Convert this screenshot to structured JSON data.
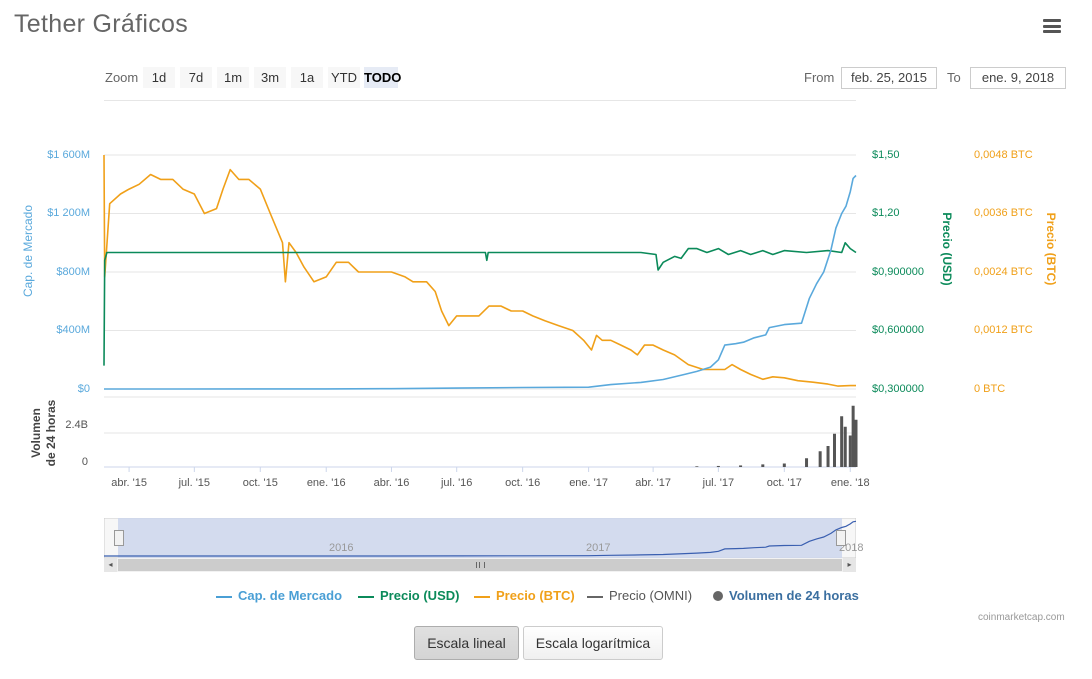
{
  "title": "Tether Gráficos",
  "toolbar": {
    "zoom_label": "Zoom",
    "zoom_buttons": [
      "1d",
      "7d",
      "1m",
      "3m",
      "1a",
      "YTD",
      "TODO"
    ],
    "active_zoom": "TODO",
    "from_label": "From",
    "from_value": "feb. 25, 2015",
    "to_label": "To",
    "to_value": "ene. 9, 2018"
  },
  "axes": {
    "market_cap_label": "Cap. de Mercado",
    "price_usd_label": "Precio (USD)",
    "price_btc_label": "Precio (BTC)",
    "volume_label_line1": "Volumen",
    "volume_label_line2": "de 24 horas"
  },
  "colors": {
    "market_cap": "#5aa9dc",
    "price_usd": "#0b8a5a",
    "price_btc": "#f0a019",
    "price_omni": "#555555",
    "volume": "#555555",
    "navigator_fill": "#cdd6ec",
    "navigator_line": "#3a5fb0"
  },
  "navigator": {
    "labels": [
      "2016",
      "2017",
      "2018"
    ]
  },
  "legend": [
    {
      "name": "Cap. de Mercado",
      "color": "#4a9fd5",
      "marker": "line"
    },
    {
      "name": "Precio (USD)",
      "color": "#0b8a5a",
      "marker": "line"
    },
    {
      "name": "Precio (BTC)",
      "color": "#f0a019",
      "marker": "line"
    },
    {
      "name": "Precio (OMNI)",
      "color": "#666666",
      "marker": "line",
      "hidden": true
    },
    {
      "name": "Volumen de 24 horas",
      "color": "#666666",
      "marker": "circle"
    }
  ],
  "credit": "coinmarketcap.com",
  "scale_buttons": {
    "linear": "Escala lineal",
    "log": "Escala logarítmica",
    "active": "linear"
  },
  "chart_data": {
    "type": "line",
    "x_start": "2015-02-25",
    "x_end": "2018-01-09",
    "x_ticks": [
      "abr. '15",
      "jul. '15",
      "oct. '15",
      "ene. '16",
      "abr. '16",
      "jul. '16",
      "oct. '16",
      "ene. '17",
      "abr. '17",
      "jul. '17",
      "oct. '17",
      "ene. '18"
    ],
    "x_tick_dates": [
      "2015-04-01",
      "2015-07-01",
      "2015-10-01",
      "2016-01-01",
      "2016-04-01",
      "2016-07-01",
      "2016-10-01",
      "2017-01-01",
      "2017-04-01",
      "2017-07-01",
      "2017-10-01",
      "2018-01-01"
    ],
    "y_axes": {
      "market_cap": {
        "ticks": [
          "$0",
          "$400M",
          "$800M",
          "$1 200M",
          "$1 600M"
        ],
        "range": [
          0,
          1600000000
        ]
      },
      "price_usd": {
        "ticks": [
          "$0,300000",
          "$0,600000",
          "$0,900000",
          "$1,20",
          "$1,50"
        ],
        "range": [
          0.3,
          1.5
        ]
      },
      "price_btc": {
        "ticks": [
          "0 BTC",
          "0,0012 BTC",
          "0,0024 BTC",
          "0,0036 BTC",
          "0,0048 BTC"
        ],
        "range": [
          0,
          0.0048
        ]
      },
      "volume": {
        "ticks": [
          "0",
          "2.4B"
        ],
        "range": [
          0,
          4000000000
        ]
      }
    },
    "series": [
      {
        "name": "Cap. de Mercado",
        "axis": "market_cap",
        "points": [
          [
            "2015-02-25",
            250000
          ],
          [
            "2015-06-01",
            300000
          ],
          [
            "2015-10-01",
            500000
          ],
          [
            "2016-01-01",
            1000000
          ],
          [
            "2016-04-01",
            2000000
          ],
          [
            "2016-07-01",
            6000000
          ],
          [
            "2016-10-01",
            10000000
          ],
          [
            "2017-01-01",
            12000000
          ],
          [
            "2017-02-01",
            30000000
          ],
          [
            "2017-03-15",
            45000000
          ],
          [
            "2017-04-15",
            65000000
          ],
          [
            "2017-05-15",
            100000000
          ],
          [
            "2017-06-01",
            120000000
          ],
          [
            "2017-06-20",
            150000000
          ],
          [
            "2017-07-01",
            200000000
          ],
          [
            "2017-07-10",
            300000000
          ],
          [
            "2017-07-25",
            310000000
          ],
          [
            "2017-08-05",
            320000000
          ],
          [
            "2017-08-20",
            350000000
          ],
          [
            "2017-09-05",
            370000000
          ],
          [
            "2017-09-10",
            420000000
          ],
          [
            "2017-10-01",
            440000000
          ],
          [
            "2017-10-25",
            450000000
          ],
          [
            "2017-11-05",
            620000000
          ],
          [
            "2017-11-15",
            720000000
          ],
          [
            "2017-11-25",
            800000000
          ],
          [
            "2017-12-05",
            950000000
          ],
          [
            "2017-12-12",
            1100000000
          ],
          [
            "2017-12-20",
            1200000000
          ],
          [
            "2017-12-26",
            1250000000
          ],
          [
            "2018-01-01",
            1350000000
          ],
          [
            "2018-01-05",
            1440000000
          ],
          [
            "2018-01-09",
            1460000000
          ]
        ]
      },
      {
        "name": "Precio (USD)",
        "axis": "price_usd",
        "points": [
          [
            "2015-02-25",
            0.42
          ],
          [
            "2015-02-26",
            0.96
          ],
          [
            "2015-03-01",
            1.0
          ],
          [
            "2016-01-01",
            1.0
          ],
          [
            "2016-06-01",
            1.0
          ],
          [
            "2016-08-10",
            1.0
          ],
          [
            "2016-08-12",
            0.96
          ],
          [
            "2016-08-14",
            1.0
          ],
          [
            "2017-01-01",
            1.0
          ],
          [
            "2017-03-15",
            1.0
          ],
          [
            "2017-04-05",
            0.99
          ],
          [
            "2017-04-08",
            0.91
          ],
          [
            "2017-04-15",
            0.95
          ],
          [
            "2017-05-01",
            0.98
          ],
          [
            "2017-05-10",
            0.97
          ],
          [
            "2017-05-20",
            1.02
          ],
          [
            "2017-06-01",
            1.02
          ],
          [
            "2017-06-15",
            1.0
          ],
          [
            "2017-07-01",
            1.02
          ],
          [
            "2017-07-15",
            0.99
          ],
          [
            "2017-08-01",
            1.01
          ],
          [
            "2017-08-15",
            0.99
          ],
          [
            "2017-09-01",
            1.01
          ],
          [
            "2017-09-15",
            0.99
          ],
          [
            "2017-10-01",
            1.01
          ],
          [
            "2017-11-01",
            1.0
          ],
          [
            "2017-12-01",
            1.01
          ],
          [
            "2017-12-20",
            1.0
          ],
          [
            "2017-12-25",
            1.05
          ],
          [
            "2018-01-01",
            1.02
          ],
          [
            "2018-01-09",
            1.0
          ]
        ]
      },
      {
        "name": "Precio (BTC)",
        "axis": "price_btc",
        "points": [
          [
            "2015-02-25",
            0.0048
          ],
          [
            "2015-02-26",
            0.0023
          ],
          [
            "2015-03-05",
            0.0038
          ],
          [
            "2015-03-20",
            0.004
          ],
          [
            "2015-04-01",
            0.0041
          ],
          [
            "2015-04-15",
            0.0042
          ],
          [
            "2015-05-01",
            0.0044
          ],
          [
            "2015-05-15",
            0.0043
          ],
          [
            "2015-06-01",
            0.0043
          ],
          [
            "2015-06-15",
            0.0041
          ],
          [
            "2015-07-01",
            0.004
          ],
          [
            "2015-07-15",
            0.0036
          ],
          [
            "2015-08-01",
            0.0037
          ],
          [
            "2015-08-10",
            0.0041
          ],
          [
            "2015-08-20",
            0.0045
          ],
          [
            "2015-09-01",
            0.0043
          ],
          [
            "2015-09-15",
            0.0043
          ],
          [
            "2015-10-01",
            0.0041
          ],
          [
            "2015-10-15",
            0.0036
          ],
          [
            "2015-11-01",
            0.003
          ],
          [
            "2015-11-05",
            0.0022
          ],
          [
            "2015-11-10",
            0.003
          ],
          [
            "2015-11-20",
            0.0028
          ],
          [
            "2015-12-01",
            0.0025
          ],
          [
            "2015-12-15",
            0.0022
          ],
          [
            "2016-01-01",
            0.0023
          ],
          [
            "2016-01-15",
            0.0026
          ],
          [
            "2016-02-01",
            0.0026
          ],
          [
            "2016-02-15",
            0.0024
          ],
          [
            "2016-03-01",
            0.0024
          ],
          [
            "2016-03-15",
            0.0024
          ],
          [
            "2016-04-01",
            0.0024
          ],
          [
            "2016-04-20",
            0.0023
          ],
          [
            "2016-05-01",
            0.0022
          ],
          [
            "2016-05-20",
            0.0022
          ],
          [
            "2016-06-01",
            0.002
          ],
          [
            "2016-06-10",
            0.0016
          ],
          [
            "2016-06-20",
            0.0013
          ],
          [
            "2016-07-01",
            0.0015
          ],
          [
            "2016-07-15",
            0.0015
          ],
          [
            "2016-08-01",
            0.0015
          ],
          [
            "2016-08-15",
            0.0017
          ],
          [
            "2016-09-01",
            0.0017
          ],
          [
            "2016-09-15",
            0.0016
          ],
          [
            "2016-10-01",
            0.0016
          ],
          [
            "2016-10-15",
            0.0015
          ],
          [
            "2016-11-01",
            0.0014
          ],
          [
            "2016-11-20",
            0.0013
          ],
          [
            "2016-12-10",
            0.0012
          ],
          [
            "2016-12-25",
            0.001
          ],
          [
            "2017-01-05",
            0.0008
          ],
          [
            "2017-01-12",
            0.0011
          ],
          [
            "2017-01-20",
            0.001
          ],
          [
            "2017-02-01",
            0.001
          ],
          [
            "2017-02-15",
            0.0009
          ],
          [
            "2017-03-01",
            0.0008
          ],
          [
            "2017-03-10",
            0.0007
          ],
          [
            "2017-03-20",
            0.0009
          ],
          [
            "2017-04-01",
            0.0009
          ],
          [
            "2017-04-15",
            0.0008
          ],
          [
            "2017-05-01",
            0.0007
          ],
          [
            "2017-05-20",
            0.0005
          ],
          [
            "2017-06-10",
            0.0004
          ],
          [
            "2017-06-25",
            0.0004
          ],
          [
            "2017-07-10",
            0.0004
          ],
          [
            "2017-07-20",
            0.0005
          ],
          [
            "2017-08-01",
            0.0004
          ],
          [
            "2017-08-15",
            0.0003
          ],
          [
            "2017-09-01",
            0.0002
          ],
          [
            "2017-09-15",
            0.00025
          ],
          [
            "2017-10-01",
            0.00023
          ],
          [
            "2017-10-20",
            0.00017
          ],
          [
            "2017-11-10",
            0.00014
          ],
          [
            "2017-12-01",
            0.0001
          ],
          [
            "2017-12-15",
            6e-05
          ],
          [
            "2018-01-01",
            7e-05
          ],
          [
            "2018-01-09",
            7e-05
          ]
        ]
      },
      {
        "name": "Volumen de 24 horas",
        "axis": "volume",
        "type": "bar",
        "points": [
          [
            "2017-06-01",
            40000000
          ],
          [
            "2017-07-01",
            60000000
          ],
          [
            "2017-08-01",
            90000000
          ],
          [
            "2017-09-01",
            150000000
          ],
          [
            "2017-10-01",
            200000000
          ],
          [
            "2017-11-01",
            500000000
          ],
          [
            "2017-11-20",
            900000000
          ],
          [
            "2017-12-01",
            1200000000
          ],
          [
            "2017-12-10",
            1900000000
          ],
          [
            "2017-12-20",
            2900000000
          ],
          [
            "2017-12-25",
            2300000000
          ],
          [
            "2018-01-01",
            1800000000
          ],
          [
            "2018-01-05",
            3500000000
          ],
          [
            "2018-01-09",
            2700000000
          ]
        ]
      }
    ]
  }
}
